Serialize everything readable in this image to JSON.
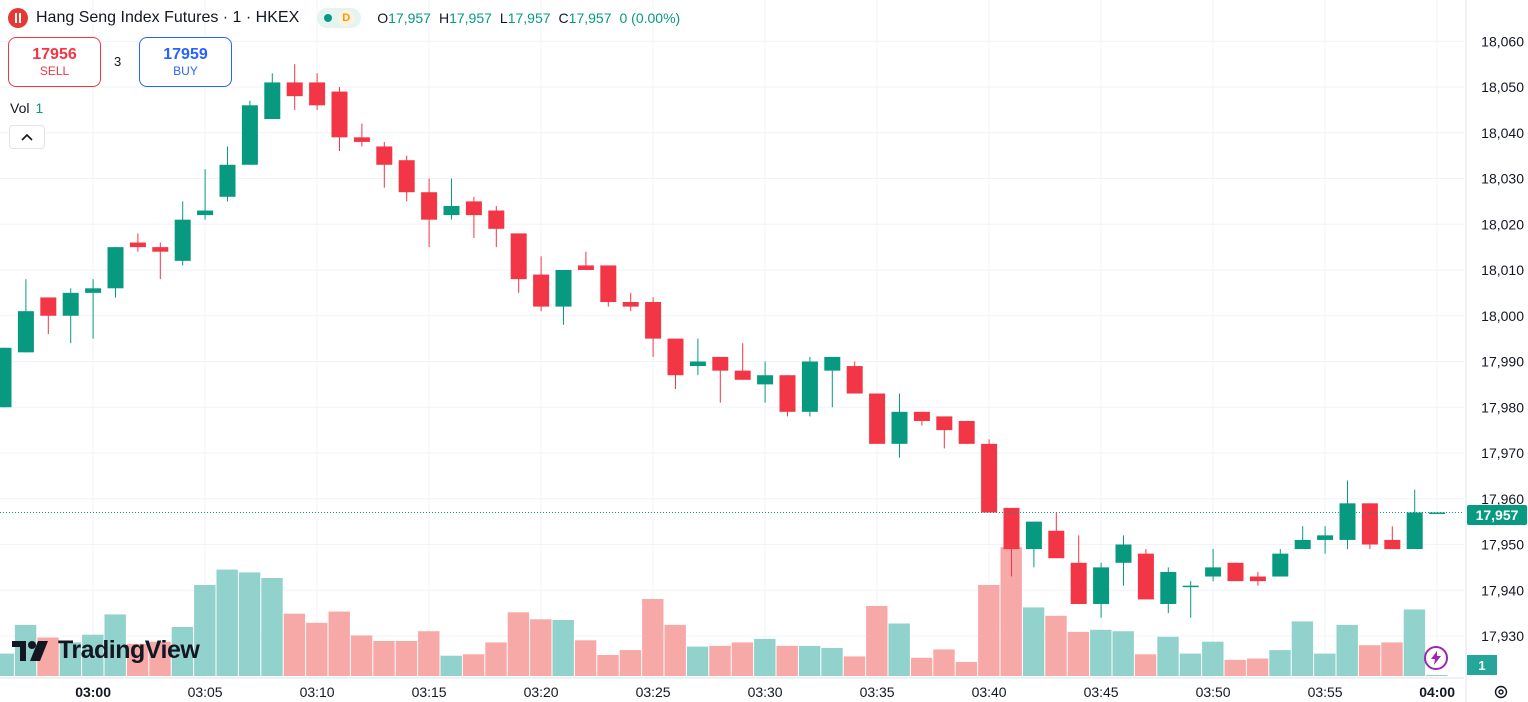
{
  "header": {
    "symbol_title": "Hang Seng Index Futures · 1 · HKEX",
    "status_letter": "D",
    "ohlc": {
      "o_label": "O",
      "o": "17,957",
      "h_label": "H",
      "h": "17,957",
      "l_label": "L",
      "l": "17,957",
      "c_label": "C",
      "c": "17,957",
      "change": "0 (0.00%)"
    }
  },
  "trade": {
    "sell_price": "17956",
    "sell_label": "SELL",
    "spread": "3",
    "buy_price": "17959",
    "buy_label": "BUY"
  },
  "volume_legend": {
    "label": "Vol",
    "value": "1"
  },
  "branding": {
    "logo_text": "TradingView"
  },
  "last_price_tag": "17,957",
  "last_volume_tag": "1",
  "colors": {
    "up": "#089981",
    "down": "#f23645",
    "up_volume": "#92d2cc",
    "down_volume": "#f7a9a7"
  },
  "chart_data": {
    "type": "candlestick",
    "title": "Hang Seng Index Futures · 1 · HKEX",
    "price_axis_ticks": [
      "18,060",
      "18,050",
      "18,040",
      "18,030",
      "18,020",
      "18,010",
      "18,000",
      "17,990",
      "17,980",
      "17,970",
      "17,960",
      "17,950",
      "17,940",
      "17,930"
    ],
    "price_axis_values": [
      18060,
      18050,
      18040,
      18030,
      18020,
      18010,
      18000,
      17990,
      17980,
      17970,
      17960,
      17950,
      17940,
      17930
    ],
    "time_axis_ticks": [
      {
        "index": 4,
        "label": "03:00",
        "bold": true
      },
      {
        "index": 9,
        "label": "03:05"
      },
      {
        "index": 14,
        "label": "03:10"
      },
      {
        "index": 19,
        "label": "03:15"
      },
      {
        "index": 24,
        "label": "03:20"
      },
      {
        "index": 29,
        "label": "03:25"
      },
      {
        "index": 34,
        "label": "03:30"
      },
      {
        "index": 39,
        "label": "03:35"
      },
      {
        "index": 44,
        "label": "03:40"
      },
      {
        "index": 49,
        "label": "03:45"
      },
      {
        "index": 54,
        "label": "03:50"
      },
      {
        "index": 59,
        "label": "03:55"
      },
      {
        "index": 64,
        "label": "04:00",
        "bold": true
      }
    ],
    "last_price": 17957,
    "candles": [
      {
        "o": 17980,
        "h": 17993,
        "l": 17980,
        "c": 17993,
        "v": 3.2
      },
      {
        "o": 17992,
        "h": 18008,
        "l": 17992,
        "c": 18001,
        "v": 7.3
      },
      {
        "o": 18004,
        "h": 18004,
        "l": 17996,
        "c": 18000,
        "v": 5.5
      },
      {
        "o": 18000,
        "h": 18006,
        "l": 17994,
        "c": 18005,
        "v": 4.8
      },
      {
        "o": 18005,
        "h": 18008,
        "l": 17995,
        "c": 18006,
        "v": 5.9
      },
      {
        "o": 18006,
        "h": 18015,
        "l": 18004,
        "c": 18015,
        "v": 8.8
      },
      {
        "o": 18016,
        "h": 18018,
        "l": 18014,
        "c": 18015,
        "v": 4.6
      },
      {
        "o": 18015,
        "h": 18016,
        "l": 18008,
        "c": 18014,
        "v": 4.9
      },
      {
        "o": 18012,
        "h": 18025,
        "l": 18011,
        "c": 18021,
        "v": 7.0
      },
      {
        "o": 18022,
        "h": 18032,
        "l": 18021,
        "c": 18023,
        "v": 13.0
      },
      {
        "o": 18026,
        "h": 18037,
        "l": 18025,
        "c": 18033,
        "v": 15.2
      },
      {
        "o": 18033,
        "h": 18047,
        "l": 18033,
        "c": 18046,
        "v": 14.8
      },
      {
        "o": 18043,
        "h": 18053,
        "l": 18043,
        "c": 18051,
        "v": 14.0
      },
      {
        "o": 18051,
        "h": 18055,
        "l": 18045,
        "c": 18048,
        "v": 8.9
      },
      {
        "o": 18051,
        "h": 18053,
        "l": 18045,
        "c": 18046,
        "v": 7.6
      },
      {
        "o": 18049,
        "h": 18050,
        "l": 18036,
        "c": 18039,
        "v": 9.2
      },
      {
        "o": 18039,
        "h": 18042,
        "l": 18037,
        "c": 18038,
        "v": 5.8
      },
      {
        "o": 18037,
        "h": 18038,
        "l": 18028,
        "c": 18033,
        "v": 5.0
      },
      {
        "o": 18034,
        "h": 18035,
        "l": 18025,
        "c": 18027,
        "v": 5.0
      },
      {
        "o": 18027,
        "h": 18030,
        "l": 18015,
        "c": 18021,
        "v": 6.4
      },
      {
        "o": 18022,
        "h": 18030,
        "l": 18021,
        "c": 18024,
        "v": 2.9
      },
      {
        "o": 18025,
        "h": 18026,
        "l": 18017,
        "c": 18022,
        "v": 3.1
      },
      {
        "o": 18023,
        "h": 18024,
        "l": 18015,
        "c": 18019,
        "v": 4.8
      },
      {
        "o": 18018,
        "h": 18018,
        "l": 18005,
        "c": 18008,
        "v": 9.1
      },
      {
        "o": 18009,
        "h": 18013,
        "l": 18001,
        "c": 18002,
        "v": 8.1
      },
      {
        "o": 18002,
        "h": 18010,
        "l": 17998,
        "c": 18010,
        "v": 8.0
      },
      {
        "o": 18011,
        "h": 18014,
        "l": 18010,
        "c": 18010,
        "v": 5.1
      },
      {
        "o": 18011,
        "h": 18011,
        "l": 18002,
        "c": 18003,
        "v": 3.0
      },
      {
        "o": 18003,
        "h": 18005,
        "l": 18001,
        "c": 18002,
        "v": 3.7
      },
      {
        "o": 18003,
        "h": 18004,
        "l": 17991,
        "c": 17995,
        "v": 11.0
      },
      {
        "o": 17995,
        "h": 17995,
        "l": 17984,
        "c": 17987,
        "v": 7.3
      },
      {
        "o": 17989,
        "h": 17995,
        "l": 17987,
        "c": 17990,
        "v": 4.2
      },
      {
        "o": 17991,
        "h": 17991,
        "l": 17981,
        "c": 17988,
        "v": 4.3
      },
      {
        "o": 17988,
        "h": 17994,
        "l": 17986,
        "c": 17986,
        "v": 4.8
      },
      {
        "o": 17985,
        "h": 17990,
        "l": 17981,
        "c": 17987,
        "v": 5.3
      },
      {
        "o": 17987,
        "h": 17987,
        "l": 17978,
        "c": 17979,
        "v": 4.3
      },
      {
        "o": 17979,
        "h": 17991,
        "l": 17978,
        "c": 17990,
        "v": 4.3
      },
      {
        "o": 17988,
        "h": 17991,
        "l": 17980,
        "c": 17991,
        "v": 4.0
      },
      {
        "o": 17989,
        "h": 17990,
        "l": 17983,
        "c": 17983,
        "v": 2.8
      },
      {
        "o": 17983,
        "h": 17983,
        "l": 17972,
        "c": 17972,
        "v": 10.0
      },
      {
        "o": 17972,
        "h": 17983,
        "l": 17969,
        "c": 17979,
        "v": 7.5
      },
      {
        "o": 17979,
        "h": 17979,
        "l": 17976,
        "c": 17977,
        "v": 2.6
      },
      {
        "o": 17978,
        "h": 17978,
        "l": 17971,
        "c": 17975,
        "v": 3.8
      },
      {
        "o": 17977,
        "h": 17977,
        "l": 17972,
        "c": 17972,
        "v": 2.0
      },
      {
        "o": 17972,
        "h": 17973,
        "l": 17957,
        "c": 17957,
        "v": 13.0
      },
      {
        "o": 17958,
        "h": 17958,
        "l": 17943,
        "c": 17949,
        "v": 18.4
      },
      {
        "o": 17949,
        "h": 17955,
        "l": 17945,
        "c": 17955,
        "v": 9.8
      },
      {
        "o": 17953,
        "h": 17957,
        "l": 17947,
        "c": 17947,
        "v": 8.6
      },
      {
        "o": 17946,
        "h": 17952,
        "l": 17937,
        "c": 17937,
        "v": 6.3
      },
      {
        "o": 17937,
        "h": 17946,
        "l": 17934,
        "c": 17945,
        "v": 6.6
      },
      {
        "o": 17946,
        "h": 17952,
        "l": 17941,
        "c": 17950,
        "v": 6.4
      },
      {
        "o": 17948,
        "h": 17949,
        "l": 17938,
        "c": 17938,
        "v": 3.1
      },
      {
        "o": 17937,
        "h": 17945,
        "l": 17935,
        "c": 17944,
        "v": 5.6
      },
      {
        "o": 17941,
        "h": 17942,
        "l": 17934,
        "c": 17941,
        "v": 3.2
      },
      {
        "o": 17943,
        "h": 17949,
        "l": 17942,
        "c": 17945,
        "v": 4.9
      },
      {
        "o": 17946,
        "h": 17946,
        "l": 17942,
        "c": 17942,
        "v": 2.3
      },
      {
        "o": 17943,
        "h": 17944,
        "l": 17941,
        "c": 17942,
        "v": 2.5
      },
      {
        "o": 17943,
        "h": 17949,
        "l": 17943,
        "c": 17948,
        "v": 3.7
      },
      {
        "o": 17949,
        "h": 17954,
        "l": 17949,
        "c": 17951,
        "v": 7.8
      },
      {
        "o": 17951,
        "h": 17954,
        "l": 17948,
        "c": 17952,
        "v": 3.2
      },
      {
        "o": 17951,
        "h": 17964,
        "l": 17949,
        "c": 17959,
        "v": 7.3
      },
      {
        "o": 17959,
        "h": 17959,
        "l": 17949,
        "c": 17950,
        "v": 4.4
      },
      {
        "o": 17951,
        "h": 17954,
        "l": 17949,
        "c": 17949,
        "v": 4.8
      },
      {
        "o": 17949,
        "h": 17962,
        "l": 17949,
        "c": 17957,
        "v": 9.5
      },
      {
        "o": 17957,
        "h": 17957,
        "l": 17957,
        "c": 17957,
        "v": 0.05
      }
    ]
  }
}
